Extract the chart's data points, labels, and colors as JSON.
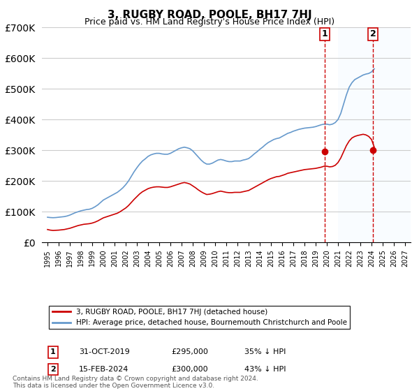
{
  "title": "3, RUGBY ROAD, POOLE, BH17 7HJ",
  "subtitle": "Price paid vs. HM Land Registry's House Price Index (HPI)",
  "legend_label_red": "3, RUGBY ROAD, POOLE, BH17 7HJ (detached house)",
  "legend_label_blue": "HPI: Average price, detached house, Bournemouth Christchurch and Poole",
  "footnote": "Contains HM Land Registry data © Crown copyright and database right 2024.\nThis data is licensed under the Open Government Licence v3.0.",
  "transaction1": {
    "label": "1",
    "date": "31-OCT-2019",
    "price": "£295,000",
    "hpi_diff": "35% ↓ HPI"
  },
  "transaction2": {
    "label": "2",
    "date": "15-FEB-2024",
    "price": "£300,000",
    "hpi_diff": "43% ↓ HPI"
  },
  "marker1_year": 2019.83,
  "marker2_year": 2024.12,
  "marker1_price": 295000,
  "marker2_price": 300000,
  "shade_start_year": 2021.0,
  "ylim": [
    0,
    700000
  ],
  "xlim_start": 1994.5,
  "xlim_end": 2027.5,
  "hpi_color": "#6699cc",
  "red_color": "#cc0000",
  "shade_color": "#ddeeff",
  "grid_color": "#cccccc",
  "background_color": "#ffffff",
  "hpi_data": {
    "years": [
      1995,
      1995.25,
      1995.5,
      1995.75,
      1996,
      1996.25,
      1996.5,
      1996.75,
      1997,
      1997.25,
      1997.5,
      1997.75,
      1998,
      1998.25,
      1998.5,
      1998.75,
      1999,
      1999.25,
      1999.5,
      1999.75,
      2000,
      2000.25,
      2000.5,
      2000.75,
      2001,
      2001.25,
      2001.5,
      2001.75,
      2002,
      2002.25,
      2002.5,
      2002.75,
      2003,
      2003.25,
      2003.5,
      2003.75,
      2004,
      2004.25,
      2004.5,
      2004.75,
      2005,
      2005.25,
      2005.5,
      2005.75,
      2006,
      2006.25,
      2006.5,
      2006.75,
      2007,
      2007.25,
      2007.5,
      2007.75,
      2008,
      2008.25,
      2008.5,
      2008.75,
      2009,
      2009.25,
      2009.5,
      2009.75,
      2010,
      2010.25,
      2010.5,
      2010.75,
      2011,
      2011.25,
      2011.5,
      2011.75,
      2012,
      2012.25,
      2012.5,
      2012.75,
      2013,
      2013.25,
      2013.5,
      2013.75,
      2014,
      2014.25,
      2014.5,
      2014.75,
      2015,
      2015.25,
      2015.5,
      2015.75,
      2016,
      2016.25,
      2016.5,
      2016.75,
      2017,
      2017.25,
      2017.5,
      2017.75,
      2018,
      2018.25,
      2018.5,
      2018.75,
      2019,
      2019.25,
      2019.5,
      2019.75,
      2020,
      2020.25,
      2020.5,
      2020.75,
      2021,
      2021.25,
      2021.5,
      2021.75,
      2022,
      2022.25,
      2022.5,
      2022.75,
      2023,
      2023.25,
      2023.5,
      2023.75,
      2024,
      2024.25
    ],
    "values": [
      82000,
      81000,
      80500,
      81000,
      82000,
      83000,
      84000,
      86000,
      89000,
      93000,
      97000,
      100000,
      103000,
      105000,
      107000,
      108000,
      111000,
      116000,
      122000,
      130000,
      138000,
      143000,
      148000,
      153000,
      158000,
      163000,
      170000,
      178000,
      188000,
      200000,
      215000,
      230000,
      243000,
      255000,
      265000,
      272000,
      280000,
      285000,
      288000,
      290000,
      290000,
      288000,
      287000,
      287000,
      290000,
      295000,
      300000,
      305000,
      308000,
      310000,
      308000,
      305000,
      298000,
      288000,
      278000,
      268000,
      260000,
      255000,
      255000,
      258000,
      263000,
      268000,
      270000,
      268000,
      265000,
      263000,
      263000,
      265000,
      265000,
      265000,
      268000,
      270000,
      273000,
      280000,
      288000,
      295000,
      303000,
      310000,
      318000,
      325000,
      330000,
      335000,
      338000,
      340000,
      345000,
      350000,
      355000,
      358000,
      362000,
      365000,
      368000,
      370000,
      372000,
      373000,
      374000,
      375000,
      377000,
      380000,
      383000,
      385000,
      385000,
      383000,
      385000,
      390000,
      400000,
      420000,
      450000,
      480000,
      505000,
      520000,
      530000,
      535000,
      540000,
      545000,
      548000,
      550000,
      555000,
      565000
    ]
  },
  "red_data": {
    "years": [
      1995,
      1995.25,
      1995.5,
      1995.75,
      1996,
      1996.25,
      1996.5,
      1996.75,
      1997,
      1997.25,
      1997.5,
      1997.75,
      1998,
      1998.25,
      1998.5,
      1998.75,
      1999,
      1999.25,
      1999.5,
      1999.75,
      2000,
      2000.25,
      2000.5,
      2000.75,
      2001,
      2001.25,
      2001.5,
      2001.75,
      2002,
      2002.25,
      2002.5,
      2002.75,
      2003,
      2003.25,
      2003.5,
      2003.75,
      2004,
      2004.25,
      2004.5,
      2004.75,
      2005,
      2005.25,
      2005.5,
      2005.75,
      2006,
      2006.25,
      2006.5,
      2006.75,
      2007,
      2007.25,
      2007.5,
      2007.75,
      2008,
      2008.25,
      2008.5,
      2008.75,
      2009,
      2009.25,
      2009.5,
      2009.75,
      2010,
      2010.25,
      2010.5,
      2010.75,
      2011,
      2011.25,
      2011.5,
      2011.75,
      2012,
      2012.25,
      2012.5,
      2012.75,
      2013,
      2013.25,
      2013.5,
      2013.75,
      2014,
      2014.25,
      2014.5,
      2014.75,
      2015,
      2015.25,
      2015.5,
      2015.75,
      2016,
      2016.25,
      2016.5,
      2016.75,
      2017,
      2017.25,
      2017.5,
      2017.75,
      2018,
      2018.25,
      2018.5,
      2018.75,
      2019,
      2019.25,
      2019.5,
      2019.75,
      2020,
      2020.25,
      2020.5,
      2020.75,
      2021,
      2021.25,
      2021.5,
      2021.75,
      2022,
      2022.25,
      2022.5,
      2022.75,
      2023,
      2023.25,
      2023.5,
      2023.75,
      2024,
      2024.25
    ],
    "values": [
      42000,
      40000,
      39000,
      39500,
      40000,
      41000,
      42000,
      44000,
      46000,
      49000,
      52000,
      55000,
      57000,
      59000,
      60000,
      61000,
      63000,
      66000,
      70000,
      75000,
      80000,
      83000,
      86000,
      89000,
      92000,
      95000,
      100000,
      106000,
      112000,
      120000,
      130000,
      140000,
      149000,
      158000,
      165000,
      170000,
      175000,
      178000,
      180000,
      181000,
      181000,
      180000,
      179000,
      179000,
      181000,
      184000,
      187000,
      190000,
      193000,
      195000,
      193000,
      190000,
      184000,
      178000,
      171000,
      165000,
      160000,
      156000,
      157000,
      159000,
      162000,
      165000,
      167000,
      165000,
      163000,
      162000,
      162000,
      163000,
      163000,
      163000,
      165000,
      167000,
      169000,
      174000,
      179000,
      184000,
      189000,
      194000,
      199000,
      204000,
      208000,
      211000,
      214000,
      215000,
      218000,
      221000,
      225000,
      227000,
      229000,
      231000,
      233000,
      235000,
      237000,
      238000,
      239000,
      240000,
      241000,
      243000,
      245000,
      248000,
      248000,
      246000,
      247000,
      251000,
      260000,
      275000,
      295000,
      315000,
      330000,
      340000,
      345000,
      348000,
      350000,
      352000,
      350000,
      345000,
      335000,
      310000
    ]
  }
}
